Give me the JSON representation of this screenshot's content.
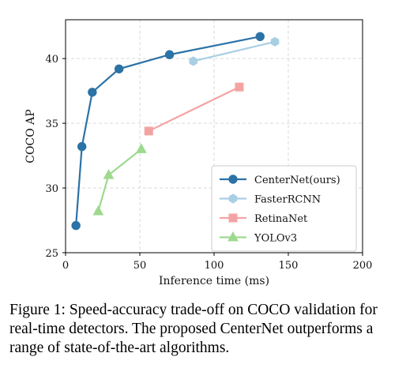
{
  "chart_data": {
    "type": "line",
    "xlabel": "Inference time (ms)",
    "ylabel": "COCO AP",
    "xlim": [
      0,
      200
    ],
    "ylim": [
      25,
      43
    ],
    "xticks": [
      0,
      50,
      100,
      150,
      200
    ],
    "yticks": [
      25,
      30,
      35,
      40
    ],
    "grid": true,
    "legend_position": "lower-right",
    "series": [
      {
        "name": "CenterNet(ours)",
        "color": "#2b72a6",
        "marker": "circle",
        "x": [
          7,
          11,
          18,
          36,
          70,
          131
        ],
        "y": [
          27.1,
          33.2,
          37.4,
          39.2,
          40.3,
          41.7
        ]
      },
      {
        "name": "FasterRCNN",
        "color": "#a9cfe4",
        "marker": "hexagon",
        "x": [
          86,
          141
        ],
        "y": [
          39.8,
          41.3
        ]
      },
      {
        "name": "RetinaNet",
        "color": "#f4a3a3",
        "marker": "square",
        "x": [
          56,
          117
        ],
        "y": [
          34.4,
          37.8
        ]
      },
      {
        "name": "YOLOv3",
        "color": "#9ed98e",
        "marker": "triangle",
        "x": [
          22,
          29,
          51
        ],
        "y": [
          28.2,
          31.0,
          33.0
        ]
      }
    ]
  },
  "caption": "Figure 1: Speed-accuracy trade-off on COCO validation for real-time detectors. The proposed CenterNet outperforms a range of state-of-the-art algorithms."
}
